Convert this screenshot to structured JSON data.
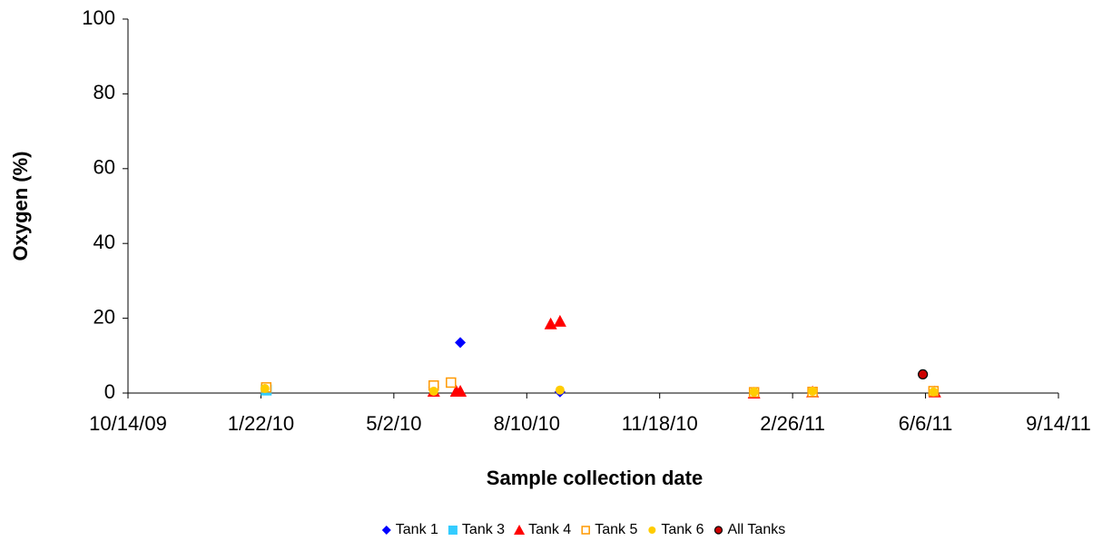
{
  "chart_data": {
    "type": "scatter",
    "x_label": "Sample collection date",
    "y_label": "Oxygen (%)",
    "xlim": [
      "2009-10-14",
      "2011-09-14"
    ],
    "xticks": [
      {
        "value": "2009-10-14",
        "label": "10/14/09"
      },
      {
        "value": "2010-01-22",
        "label": "1/22/10"
      },
      {
        "value": "2010-05-02",
        "label": "5/2/10"
      },
      {
        "value": "2010-08-10",
        "label": "8/10/10"
      },
      {
        "value": "2010-11-18",
        "label": "11/18/10"
      },
      {
        "value": "2011-02-26",
        "label": "2/26/11"
      },
      {
        "value": "2011-06-06",
        "label": "6/6/11"
      },
      {
        "value": "2011-09-14",
        "label": "9/14/11"
      }
    ],
    "ylim": [
      0,
      100
    ],
    "yticks": [
      0,
      20,
      40,
      60,
      80,
      100
    ],
    "grid": false,
    "legend": "bottom",
    "series": [
      {
        "name": "Tank 1",
        "color": "#0000ff",
        "marker": "diamond",
        "x": [
          "2010-06-01",
          "2010-06-21",
          "2010-09-04"
        ],
        "values": [
          1.5,
          13.5,
          0.3
        ]
      },
      {
        "name": "Tank 3",
        "color": "#33ccff",
        "marker": "square",
        "x": [
          "2010-01-26"
        ],
        "values": [
          0.8
        ]
      },
      {
        "name": "Tank 4",
        "color": "#ff0000",
        "marker": "triangle",
        "x": [
          "2010-06-01",
          "2010-06-18",
          "2010-06-21",
          "2010-08-28",
          "2010-09-04",
          "2011-01-28",
          "2011-03-13",
          "2011-06-13"
        ],
        "values": [
          0.5,
          0.5,
          0.5,
          18.5,
          19.2,
          0,
          0.3,
          0.3
        ]
      },
      {
        "name": "Tank 5",
        "color": "#ff9900",
        "marker": "hollow-square",
        "x": [
          "2010-01-26",
          "2010-06-01",
          "2010-06-14",
          "2011-01-28",
          "2011-03-13",
          "2011-06-12"
        ],
        "values": [
          1.5,
          2,
          2.8,
          0.2,
          0.3,
          0.5
        ]
      },
      {
        "name": "Tank 6",
        "color": "#ffcc00",
        "marker": "circle",
        "x": [
          "2010-01-25",
          "2010-06-01",
          "2010-09-04",
          "2011-01-28",
          "2011-03-13",
          "2011-06-12"
        ],
        "values": [
          1.2,
          0.5,
          0.8,
          0.3,
          0.5,
          0.3
        ]
      },
      {
        "name": "All Tanks",
        "color": "#cc0000",
        "marker": "outlined-circle",
        "x": [
          "2011-06-04"
        ],
        "values": [
          5
        ]
      }
    ]
  }
}
